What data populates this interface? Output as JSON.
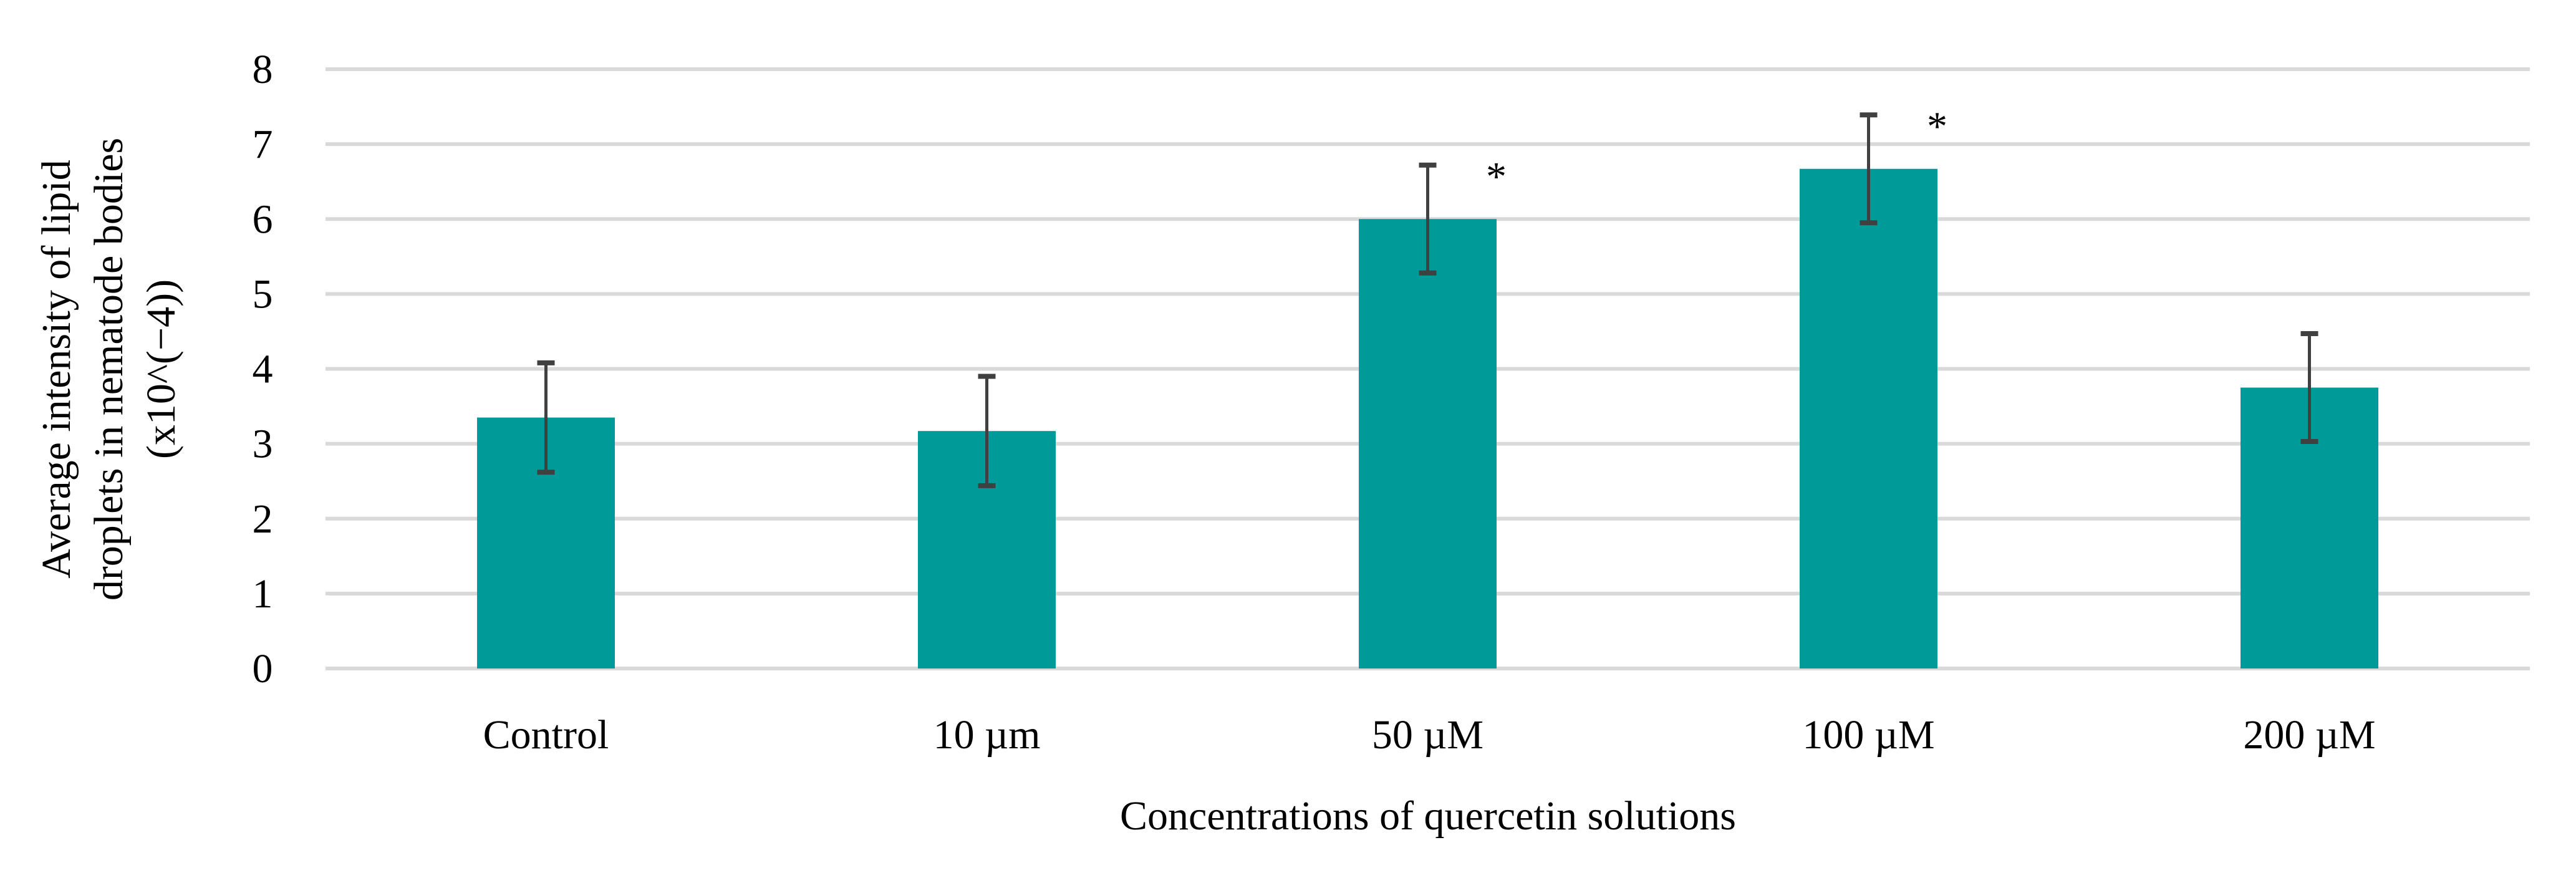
{
  "chart_data": {
    "type": "bar",
    "title": "",
    "xlabel": "Concentrations of quercetin solutions",
    "ylabel_lines": [
      "Average  intensity of lipid",
      "droplets in nematode bodies",
      "(x10^(−4))"
    ],
    "categories": [
      "Control",
      "10 µm",
      "50 µM",
      "100 µM",
      "200 µM"
    ],
    "values": [
      3.35,
      3.17,
      6.0,
      6.67,
      3.75
    ],
    "errors": [
      0.73,
      0.73,
      0.72,
      0.72,
      0.72
    ],
    "significance": [
      "",
      "",
      "*",
      "*",
      ""
    ],
    "ylim": [
      0,
      8
    ],
    "yticks": [
      "0",
      "1",
      "2",
      "3",
      "4",
      "5",
      "6",
      "7",
      "8"
    ],
    "grid": true,
    "legend": "none",
    "colors": {
      "bar": "#009B98",
      "error": "#404040",
      "grid": "#D9D9D9"
    }
  }
}
